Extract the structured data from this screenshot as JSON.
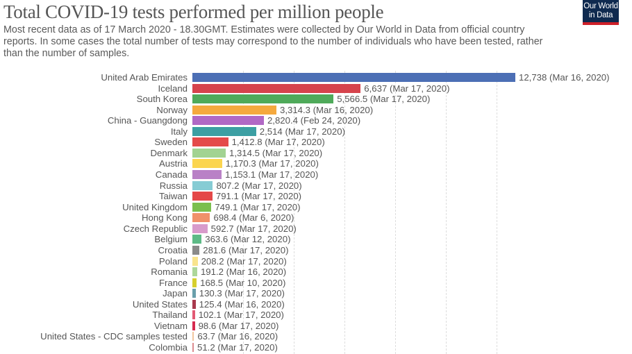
{
  "header": {
    "title": "Total COVID-19 tests performed per million people",
    "subtitle": "Most recent data as of 17 March 2020 - 18.30GMT. Estimates were collected by Our World in Data from official country reports. In some cases the total number of tests may correspond to the number of individuals who have been tested, rather than the number of samples.",
    "logo_line1": "Our World",
    "logo_line2": "in Data"
  },
  "chart_data": {
    "type": "bar",
    "orientation": "horizontal",
    "title": "Total COVID-19 tests performed per million people",
    "subtitle": "Most recent data as of 17 March 2020 - 18.30GMT. Estimates were collected by Our World in Data from official country reports. In some cases the total number of tests may correspond to the number of individuals who have been tested, rather than the number of samples.",
    "xlabel": "",
    "ylabel": "",
    "xlim": [
      0,
      12738
    ],
    "grid": true,
    "gridlines_at": [
      2000,
      4000,
      6000,
      8000,
      10000,
      12000
    ],
    "legend": "none",
    "categories": [
      "United Arab Emirates",
      "Iceland",
      "South Korea",
      "Norway",
      "China - Guangdong",
      "Italy",
      "Sweden",
      "Denmark",
      "Austria",
      "Canada",
      "Russia",
      "Taiwan",
      "United Kingdom",
      "Hong Kong",
      "Czech Republic",
      "Belgium",
      "Croatia",
      "Poland",
      "Romania",
      "France",
      "Japan",
      "United States",
      "Thailand",
      "Vietnam",
      "United States - CDC samples tested",
      "Colombia"
    ],
    "values": [
      12738,
      6637,
      5566.5,
      3314.3,
      2820.4,
      2514,
      1412.8,
      1314.5,
      1170.3,
      1153.1,
      807.2,
      791.1,
      749.1,
      698.4,
      592.7,
      363.6,
      281.6,
      208.2,
      191.2,
      168.5,
      130.3,
      125.4,
      102.1,
      98.6,
      63.7,
      51.2
    ],
    "value_labels": [
      "12,738",
      "6,637",
      "5,566.5",
      "3,314.3",
      "2,820.4",
      "2,514",
      "1,412.8",
      "1,314.5",
      "1,170.3",
      "1,153.1",
      "807.2",
      "791.1",
      "749.1",
      "698.4",
      "592.7",
      "363.6",
      "281.6",
      "208.2",
      "191.2",
      "168.5",
      "130.3",
      "125.4",
      "102.1",
      "98.6",
      "63.7",
      "51.2"
    ],
    "dates": [
      "Mar 16, 2020",
      "Mar 17, 2020",
      "Mar 17, 2020",
      "Mar 16, 2020",
      "Feb 24, 2020",
      "Mar 17, 2020",
      "Mar 17, 2020",
      "Mar 17, 2020",
      "Mar 17, 2020",
      "Mar 17, 2020",
      "Mar 17, 2020",
      "Mar 17, 2020",
      "Mar 17, 2020",
      "Mar 6, 2020",
      "Mar 17, 2020",
      "Mar 12, 2020",
      "Mar 17, 2020",
      "Mar 17, 2020",
      "Mar 16, 2020",
      "Mar 10, 2020",
      "Mar 17, 2020",
      "Mar 16, 2020",
      "Mar 17, 2020",
      "Mar 17, 2020",
      "Mar 16, 2020",
      "Mar 17, 2020"
    ],
    "colors": [
      "#4c6fb5",
      "#d6434c",
      "#4faa5a",
      "#f5a93e",
      "#b168c5",
      "#3c9fa3",
      "#e44a4a",
      "#a2d392",
      "#fbd54f",
      "#b981c6",
      "#86ccd4",
      "#e44848",
      "#7bbf4e",
      "#f0916a",
      "#d89bcb",
      "#5dba86",
      "#8a8a8a",
      "#f9e48d",
      "#add79a",
      "#d6cf2e",
      "#6a9fab",
      "#a8394d",
      "#e25a74",
      "#d62a4f",
      "#f2c59e",
      "#dc8b8f"
    ]
  }
}
